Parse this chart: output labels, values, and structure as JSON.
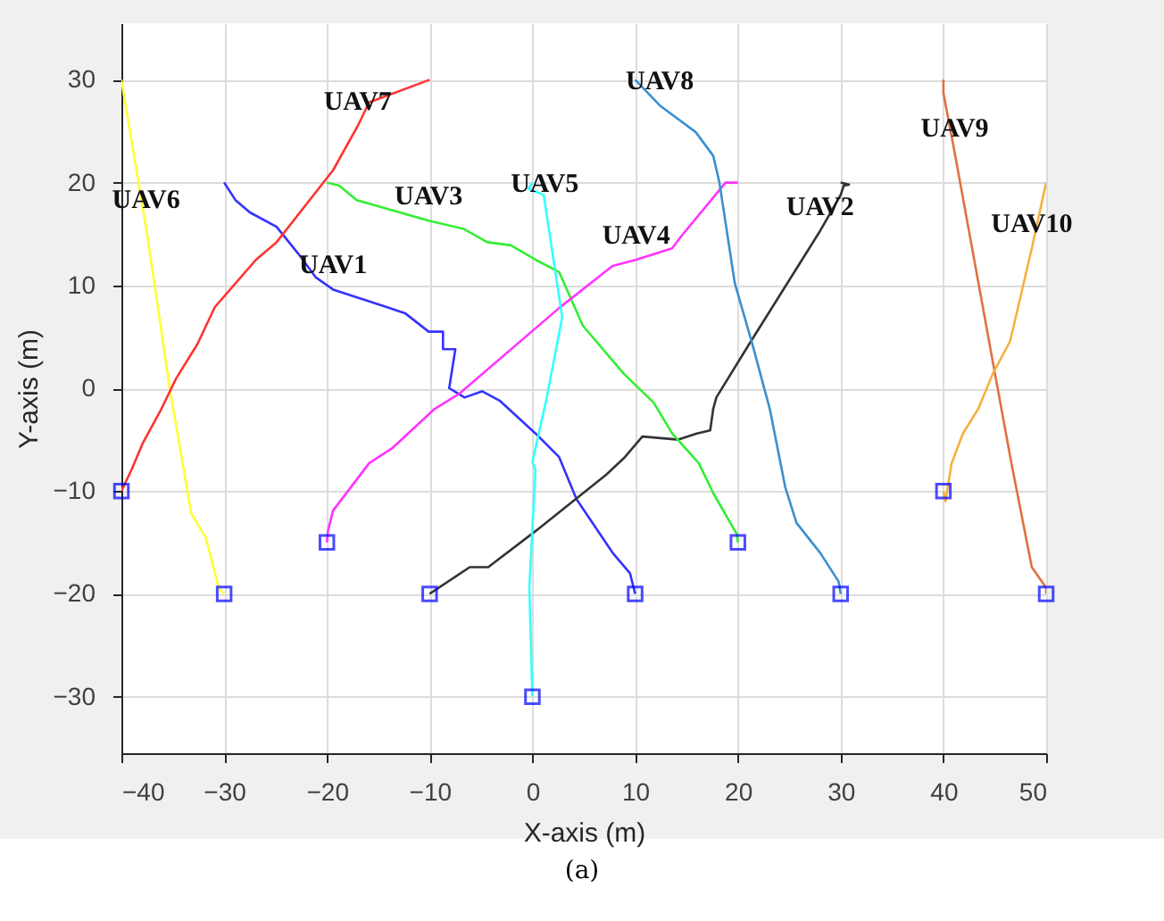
{
  "chart_data": {
    "type": "line",
    "xlabel": "X-axis (m)",
    "ylabel": "Y-axis (m)",
    "xlim": [
      -40,
      50
    ],
    "ylim": [
      -35.5,
      35.5
    ],
    "xticks": [
      -40,
      -30,
      -20,
      -10,
      0,
      10,
      20,
      30,
      40,
      50
    ],
    "yticks": [
      -30,
      -20,
      -10,
      0,
      10,
      20,
      30
    ],
    "grid": true,
    "line_style": "solid",
    "series": [
      {
        "color": "#3333ff",
        "x": [
          -30,
          -28.9,
          -27.5,
          -24.9,
          -22.8,
          -21.1,
          -19.4,
          -14.2,
          -12.4,
          -10.1,
          -8.7,
          -8.7,
          -7.5,
          -8.1,
          -6.6,
          -4.9,
          -3.2,
          0.3,
          2.6,
          4.3,
          7.8,
          9.5,
          10
        ],
        "values": [
          20,
          18.3,
          17.1,
          15.7,
          13.1,
          10.8,
          9.6,
          7.9,
          7.3,
          5.5,
          5.5,
          3.8,
          3.8,
          0,
          -0.9,
          -0.3,
          -1.2,
          -4.4,
          -6.7,
          -10.8,
          -16,
          -18,
          -20
        ]
      },
      {
        "color": "#333333",
        "x": [
          -10,
          -6.1,
          -4.3,
          0.3,
          7.2,
          9,
          10.7,
          14.2,
          16,
          17.3,
          17.6,
          17.9,
          21.1,
          28,
          30,
          30.3,
          30.8,
          30
        ],
        "values": [
          -20,
          -17.4,
          -17.4,
          -13.9,
          -8.4,
          -6.7,
          -4.7,
          -5,
          -4.4,
          -4.1,
          -2,
          -0.9,
          4.3,
          15.3,
          18.8,
          19.7,
          19.8,
          20
        ]
      },
      {
        "color": "#33ee33",
        "x": [
          -20,
          -18.8,
          -17.1,
          -10.1,
          -6.7,
          -4.4,
          -2.1,
          0.3,
          2.6,
          4.9,
          8.9,
          11.8,
          13.6,
          16.2,
          17.6,
          19.9,
          20
        ],
        "values": [
          20,
          19.7,
          18.3,
          16.3,
          15.5,
          14.2,
          13.9,
          12.5,
          11.3,
          6.1,
          1.4,
          -1.4,
          -4.4,
          -7.3,
          -10.2,
          -14.2,
          -15
        ]
      },
      {
        "color": "#ff33ff",
        "x": [
          20,
          18.8,
          14.5,
          13.6,
          10.1,
          7.8,
          2.6,
          -7.2,
          -9.5,
          -13.6,
          -15.9,
          -19.4,
          -19.9,
          -20
        ],
        "values": [
          20,
          20,
          14.8,
          13.6,
          12.5,
          11.9,
          7.8,
          -0.6,
          -2,
          -5.8,
          -7.3,
          -11.9,
          -13.9,
          -15
        ]
      },
      {
        "color": "#33ffff",
        "x": [
          0,
          -0.4,
          1.1,
          2.9,
          1.4,
          0,
          0.3,
          -0.3,
          0
        ],
        "values": [
          20,
          19.4,
          18.8,
          6.9,
          -0.9,
          -7.2,
          -7.9,
          -19.4,
          -30
        ]
      },
      {
        "color": "#ffff33",
        "x": [
          -40,
          -37.5,
          -35.3,
          -33.2,
          -31.8,
          -30.5,
          -30
        ],
        "values": [
          30,
          15,
          0,
          -12.2,
          -14.5,
          -19.5,
          -20
        ]
      },
      {
        "color": "#ff3333",
        "x": [
          -10,
          -15.9,
          -17,
          -19.4,
          -24.9,
          -26.9,
          -30.9,
          -32.6,
          -34.7,
          -36.1,
          -37.9,
          -39,
          -40
        ],
        "values": [
          30,
          27.8,
          25.5,
          21.2,
          14.2,
          12.5,
          7.9,
          4.3,
          0.9,
          -2,
          -5.3,
          -7.9,
          -10
        ]
      },
      {
        "color": "#3a8fcf",
        "x": [
          10,
          12.4,
          15.9,
          17.6,
          18.2,
          19.7,
          21.4,
          23.1,
          24.6,
          25.7,
          28,
          29.8,
          30
        ],
        "values": [
          30,
          27.5,
          24.9,
          22.6,
          20,
          10.2,
          4.3,
          -2,
          -9.6,
          -13.1,
          -16,
          -18.8,
          -20
        ]
      },
      {
        "color": "#e07040",
        "x": [
          40,
          40,
          41.1,
          44.8,
          46.6,
          48.6,
          50,
          50
        ],
        "values": [
          30,
          28.7,
          22.9,
          2.6,
          -7.2,
          -17.4,
          -19.4,
          -20
        ]
      },
      {
        "color": "#f5b040",
        "x": [
          50,
          48.6,
          46.5,
          44.8,
          43.4,
          41.9,
          40.8,
          40.2,
          40
        ],
        "values": [
          20,
          13.6,
          4.6,
          1.4,
          -2,
          -4.4,
          -7.3,
          -11,
          -10
        ]
      },
      {
        "type": "scatter",
        "marker": "square",
        "color": "#0000ff",
        "x": [
          -40,
          -30,
          -20,
          -10,
          0,
          10,
          20,
          30,
          40,
          50
        ],
        "values": [
          -10,
          -20,
          -15,
          -20,
          -30,
          -20,
          -15,
          -20,
          -10,
          -20
        ]
      }
    ],
    "annotations": [
      {
        "text": "UAV1",
        "x": -19.4,
        "y": 9.6
      },
      {
        "text": "UAV2",
        "x": 28,
        "y": 15.3
      },
      {
        "text": "UAV3",
        "x": -10.1,
        "y": 16.3
      },
      {
        "text": "UAV4",
        "x": 10.1,
        "y": 12.5
      },
      {
        "text": "UAV5",
        "x": 1.2,
        "y": 17.5
      },
      {
        "text": "UAV6",
        "x": -37.6,
        "y": 16
      },
      {
        "text": "UAV7",
        "x": -17,
        "y": 25.5
      },
      {
        "text": "UAV8",
        "x": 12.4,
        "y": 27.5
      },
      {
        "text": "UAV9",
        "x": 41.1,
        "y": 22.9
      },
      {
        "text": "UAV10",
        "x": 48.6,
        "y": 13.6
      },
      "(a)"
    ]
  }
}
